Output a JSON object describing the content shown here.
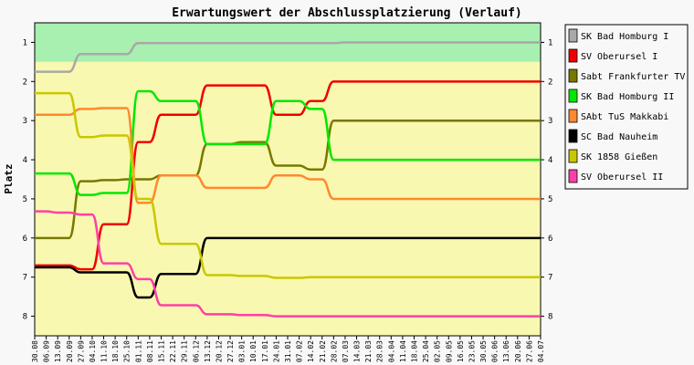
{
  "chart_data": {
    "type": "line",
    "title": "Erwartungswert der Abschlussplatzierung (Verlauf)",
    "ylabel": "Platz",
    "xlabel": "",
    "ylim": [
      0.5,
      8.5
    ],
    "y_inverted": true,
    "yticks": [
      1,
      2,
      3,
      4,
      5,
      6,
      7,
      8
    ],
    "shaded_bands": [
      {
        "from": 0.5,
        "to": 1.5,
        "color": "#a8f0b0"
      },
      {
        "from": 1.5,
        "to": 8.5,
        "color": "#f8f8b0"
      }
    ],
    "grid": false,
    "legend_position": "right",
    "x": [
      "30.08",
      "06.09",
      "13.09",
      "20.09",
      "27.09",
      "04.10",
      "11.10",
      "18.10",
      "25.10",
      "01.11",
      "08.11",
      "15.11",
      "22.11",
      "29.11",
      "06.12",
      "13.12",
      "20.12",
      "27.12",
      "03.01",
      "10.01",
      "17.01",
      "24.01",
      "31.01",
      "07.02",
      "14.02",
      "21.02",
      "28.02",
      "07.03",
      "14.03",
      "21.03",
      "28.03",
      "04.04",
      "11.04",
      "18.04",
      "25.04",
      "02.05",
      "09.05",
      "16.05",
      "23.05",
      "30.05",
      "06.06",
      "13.06",
      "20.06",
      "27.06",
      "04.07"
    ],
    "series": [
      {
        "name": "SK Bad Homburg I",
        "color": "#a8a8a8",
        "values": [
          1.75,
          1.75,
          1.75,
          1.75,
          1.3,
          1.3,
          1.3,
          1.3,
          1.3,
          1.02,
          1.02,
          1.02,
          1.02,
          1.02,
          1.02,
          1.02,
          1.02,
          1.02,
          1.02,
          1.02,
          1.02,
          1.02,
          1.02,
          1.02,
          1.02,
          1.02,
          1.02,
          1.0,
          1.0,
          1.0,
          1.0,
          1.0,
          1.0,
          1.0,
          1.0,
          1.0,
          1.0,
          1.0,
          1.0,
          1.0,
          1.0,
          1.0,
          1.0,
          1.0,
          1.0
        ]
      },
      {
        "name": "SV Oberursel I",
        "color": "#f00000",
        "values": [
          6.7,
          6.7,
          6.7,
          6.7,
          6.8,
          6.8,
          5.65,
          5.65,
          5.65,
          3.55,
          3.55,
          2.85,
          2.85,
          2.85,
          2.85,
          2.1,
          2.1,
          2.1,
          2.1,
          2.1,
          2.1,
          2.85,
          2.85,
          2.85,
          2.5,
          2.5,
          2.0,
          2.0,
          2.0,
          2.0,
          2.0,
          2.0,
          2.0,
          2.0,
          2.0,
          2.0,
          2.0,
          2.0,
          2.0,
          2.0,
          2.0,
          2.0,
          2.0,
          2.0,
          2.0
        ]
      },
      {
        "name": "Sabt Frankfurter TV",
        "color": "#787800",
        "values": [
          6.0,
          6.0,
          6.0,
          6.0,
          4.55,
          4.55,
          4.52,
          4.52,
          4.5,
          4.5,
          4.5,
          4.4,
          4.4,
          4.4,
          4.4,
          3.6,
          3.6,
          3.6,
          3.55,
          3.55,
          3.55,
          4.15,
          4.15,
          4.15,
          4.25,
          4.25,
          3.0,
          3.0,
          3.0,
          3.0,
          3.0,
          3.0,
          3.0,
          3.0,
          3.0,
          3.0,
          3.0,
          3.0,
          3.0,
          3.0,
          3.0,
          3.0,
          3.0,
          3.0,
          3.0
        ]
      },
      {
        "name": "SK Bad Homburg II",
        "color": "#00e800",
        "values": [
          4.35,
          4.35,
          4.35,
          4.35,
          4.9,
          4.9,
          4.85,
          4.85,
          4.85,
          2.25,
          2.25,
          2.5,
          2.5,
          2.5,
          2.5,
          3.6,
          3.6,
          3.6,
          3.6,
          3.6,
          3.6,
          2.5,
          2.5,
          2.5,
          2.7,
          2.7,
          4.0,
          4.0,
          4.0,
          4.0,
          4.0,
          4.0,
          4.0,
          4.0,
          4.0,
          4.0,
          4.0,
          4.0,
          4.0,
          4.0,
          4.0,
          4.0,
          4.0,
          4.0,
          4.0
        ]
      },
      {
        "name": "SAbt TuS Makkabi",
        "color": "#ff8830",
        "values": [
          2.85,
          2.85,
          2.85,
          2.85,
          2.7,
          2.7,
          2.68,
          2.68,
          2.68,
          5.1,
          5.1,
          4.4,
          4.4,
          4.4,
          4.4,
          4.72,
          4.72,
          4.72,
          4.72,
          4.72,
          4.72,
          4.4,
          4.4,
          4.4,
          4.5,
          4.5,
          5.0,
          5.0,
          5.0,
          5.0,
          5.0,
          5.0,
          5.0,
          5.0,
          5.0,
          5.0,
          5.0,
          5.0,
          5.0,
          5.0,
          5.0,
          5.0,
          5.0,
          5.0,
          5.0
        ]
      },
      {
        "name": "SC Bad Nauheim",
        "color": "#000000",
        "values": [
          6.75,
          6.75,
          6.75,
          6.75,
          6.88,
          6.88,
          6.88,
          6.88,
          6.88,
          7.52,
          7.52,
          6.92,
          6.92,
          6.92,
          6.92,
          6.0,
          6.0,
          6.0,
          6.0,
          6.0,
          6.0,
          6.0,
          6.0,
          6.0,
          6.0,
          6.0,
          6.0,
          6.0,
          6.0,
          6.0,
          6.0,
          6.0,
          6.0,
          6.0,
          6.0,
          6.0,
          6.0,
          6.0,
          6.0,
          6.0,
          6.0,
          6.0,
          6.0,
          6.0,
          6.0
        ]
      },
      {
        "name": "SK 1858 Gießen",
        "color": "#c8c800",
        "values": [
          2.3,
          2.3,
          2.3,
          2.3,
          3.42,
          3.42,
          3.38,
          3.38,
          3.38,
          5.0,
          5.0,
          6.15,
          6.15,
          6.15,
          6.15,
          6.95,
          6.95,
          6.95,
          6.97,
          6.97,
          6.97,
          7.02,
          7.02,
          7.02,
          7.0,
          7.0,
          7.0,
          7.0,
          7.0,
          7.0,
          7.0,
          7.0,
          7.0,
          7.0,
          7.0,
          7.0,
          7.0,
          7.0,
          7.0,
          7.0,
          7.0,
          7.0,
          7.0,
          7.0,
          7.0
        ]
      },
      {
        "name": "SV Oberursel II",
        "color": "#ff40a8",
        "values": [
          5.32,
          5.32,
          5.35,
          5.35,
          5.4,
          5.4,
          6.65,
          6.65,
          6.65,
          7.05,
          7.05,
          7.72,
          7.72,
          7.72,
          7.72,
          7.95,
          7.95,
          7.95,
          7.97,
          7.97,
          7.97,
          8.0,
          8.0,
          8.0,
          8.0,
          8.0,
          8.0,
          8.0,
          8.0,
          8.0,
          8.0,
          8.0,
          8.0,
          8.0,
          8.0,
          8.0,
          8.0,
          8.0,
          8.0,
          8.0,
          8.0,
          8.0,
          8.0,
          8.0,
          8.0
        ]
      }
    ]
  }
}
